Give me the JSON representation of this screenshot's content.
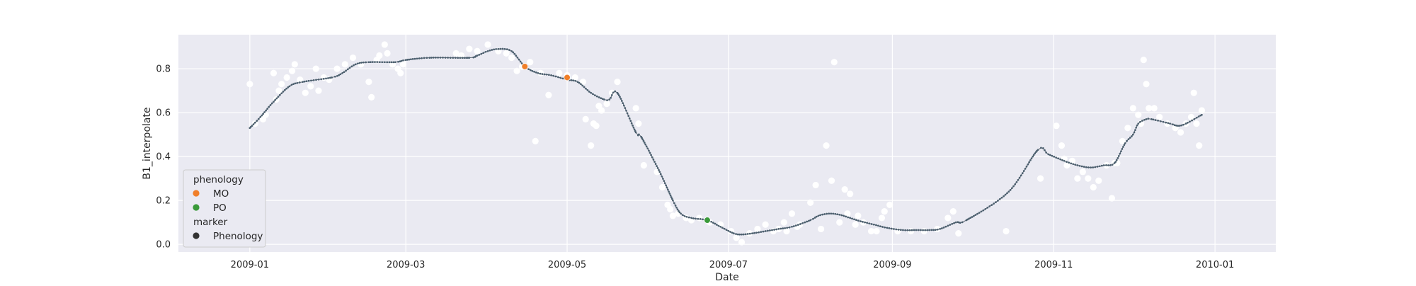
{
  "chart_data": {
    "type": "scatter",
    "xlabel": "Date",
    "ylabel": "B1_interpolate",
    "xlim": [
      "2008-12-05",
      "2010-01-24"
    ],
    "ylim": [
      -0.035,
      0.955
    ],
    "x_ticks": [
      "2009-01",
      "2009-03",
      "2009-05",
      "2009-07",
      "2009-09",
      "2009-11",
      "2010-01"
    ],
    "y_ticks": [
      "0.0",
      "0.2",
      "0.4",
      "0.6",
      "0.8"
    ],
    "grid": true,
    "legend_placement": "lower-left",
    "background": "#eaeaf2",
    "colors": {
      "observed_points": "#ffffff",
      "interpolated_line": "#4b5f6e",
      "MO": "#f07f2a",
      "PO": "#3a9a3a",
      "Phenology_marker": "#333333"
    },
    "legend": {
      "title_1": "phenology",
      "items_1": [
        {
          "label": "MO",
          "color": "#f07f2a"
        },
        {
          "label": "PO",
          "color": "#3a9a3a"
        }
      ],
      "title_2": "marker",
      "items_2": [
        {
          "label": "Phenology",
          "color": "#333333"
        }
      ]
    },
    "series": [
      {
        "role": "observed",
        "points": [
          [
            "2009-01-01",
            0.73
          ],
          [
            "2009-01-03",
            0.55
          ],
          [
            "2009-01-06",
            0.57
          ],
          [
            "2009-01-07",
            0.59
          ],
          [
            "2009-01-10",
            0.78
          ],
          [
            "2009-01-11",
            0.66
          ],
          [
            "2009-01-12",
            0.7
          ],
          [
            "2009-01-13",
            0.73
          ],
          [
            "2009-01-15",
            0.76
          ],
          [
            "2009-01-17",
            0.79
          ],
          [
            "2009-01-18",
            0.82
          ],
          [
            "2009-01-20",
            0.75
          ],
          [
            "2009-01-22",
            0.69
          ],
          [
            "2009-01-24",
            0.72
          ],
          [
            "2009-01-26",
            0.8
          ],
          [
            "2009-01-27",
            0.7
          ],
          [
            "2009-01-29",
            0.76
          ],
          [
            "2009-01-31",
            0.75
          ],
          [
            "2009-02-03",
            0.8
          ],
          [
            "2009-02-06",
            0.82
          ],
          [
            "2009-02-09",
            0.85
          ],
          [
            "2009-02-12",
            0.82
          ],
          [
            "2009-02-15",
            0.74
          ],
          [
            "2009-02-16",
            0.67
          ],
          [
            "2009-02-18",
            0.84
          ],
          [
            "2009-02-19",
            0.86
          ],
          [
            "2009-02-21",
            0.91
          ],
          [
            "2009-02-22",
            0.87
          ],
          [
            "2009-02-24",
            0.82
          ],
          [
            "2009-02-26",
            0.8
          ],
          [
            "2009-02-27",
            0.78
          ],
          [
            "2009-02-28",
            0.82
          ],
          [
            "2009-03-20",
            0.87
          ],
          [
            "2009-03-22",
            0.86
          ],
          [
            "2009-03-25",
            0.89
          ],
          [
            "2009-03-28",
            0.88
          ],
          [
            "2009-04-01",
            0.91
          ],
          [
            "2009-04-05",
            0.88
          ],
          [
            "2009-04-08",
            0.87
          ],
          [
            "2009-04-10",
            0.85
          ],
          [
            "2009-04-12",
            0.79
          ],
          [
            "2009-04-14",
            0.81
          ],
          [
            "2009-04-17",
            0.83
          ],
          [
            "2009-04-19",
            0.47
          ],
          [
            "2009-04-21",
            0.78
          ],
          [
            "2009-04-24",
            0.68
          ],
          [
            "2009-04-28",
            0.78
          ],
          [
            "2009-05-01",
            0.77
          ],
          [
            "2009-05-04",
            0.76
          ],
          [
            "2009-05-07",
            0.74
          ],
          [
            "2009-05-08",
            0.57
          ],
          [
            "2009-05-10",
            0.45
          ],
          [
            "2009-05-11",
            0.55
          ],
          [
            "2009-05-12",
            0.54
          ],
          [
            "2009-05-13",
            0.63
          ],
          [
            "2009-05-14",
            0.61
          ],
          [
            "2009-05-16",
            0.64
          ],
          [
            "2009-05-18",
            0.69
          ],
          [
            "2009-05-20",
            0.74
          ],
          [
            "2009-05-27",
            0.62
          ],
          [
            "2009-05-28",
            0.55
          ],
          [
            "2009-05-30",
            0.36
          ],
          [
            "2009-06-04",
            0.33
          ],
          [
            "2009-06-06",
            0.26
          ],
          [
            "2009-06-08",
            0.18
          ],
          [
            "2009-06-09",
            0.16
          ],
          [
            "2009-06-10",
            0.13
          ],
          [
            "2009-06-12",
            0.14
          ],
          [
            "2009-06-15",
            0.12
          ],
          [
            "2009-06-17",
            0.11
          ],
          [
            "2009-06-20",
            0.12
          ],
          [
            "2009-06-24",
            0.1
          ],
          [
            "2009-06-28",
            0.09
          ],
          [
            "2009-07-02",
            0.06
          ],
          [
            "2009-07-04",
            0.03
          ],
          [
            "2009-07-06",
            0.01
          ],
          [
            "2009-07-09",
            0.05
          ],
          [
            "2009-07-12",
            0.07
          ],
          [
            "2009-07-15",
            0.09
          ],
          [
            "2009-07-18",
            0.06
          ],
          [
            "2009-07-20",
            0.07
          ],
          [
            "2009-07-22",
            0.1
          ],
          [
            "2009-07-23",
            0.06
          ],
          [
            "2009-07-25",
            0.14
          ],
          [
            "2009-07-27",
            0.08
          ],
          [
            "2009-07-28",
            0.09
          ],
          [
            "2009-08-01",
            0.19
          ],
          [
            "2009-08-03",
            0.27
          ],
          [
            "2009-08-05",
            0.07
          ],
          [
            "2009-08-07",
            0.45
          ],
          [
            "2009-08-09",
            0.29
          ],
          [
            "2009-08-10",
            0.83
          ],
          [
            "2009-08-12",
            0.1
          ],
          [
            "2009-08-14",
            0.25
          ],
          [
            "2009-08-15",
            0.14
          ],
          [
            "2009-08-16",
            0.23
          ],
          [
            "2009-08-18",
            0.09
          ],
          [
            "2009-08-19",
            0.13
          ],
          [
            "2009-08-21",
            0.1
          ],
          [
            "2009-08-24",
            0.06
          ],
          [
            "2009-08-26",
            0.06
          ],
          [
            "2009-08-28",
            0.12
          ],
          [
            "2009-08-29",
            0.15
          ],
          [
            "2009-08-31",
            0.18
          ],
          [
            "2009-09-03",
            0.06
          ],
          [
            "2009-09-08",
            0.06
          ],
          [
            "2009-09-13",
            0.06
          ],
          [
            "2009-09-18",
            0.07
          ],
          [
            "2009-09-22",
            0.12
          ],
          [
            "2009-09-24",
            0.15
          ],
          [
            "2009-09-26",
            0.05
          ],
          [
            "2009-10-14",
            0.06
          ],
          [
            "2009-10-27",
            0.3
          ],
          [
            "2009-11-02",
            0.54
          ],
          [
            "2009-11-04",
            0.45
          ],
          [
            "2009-11-05",
            0.39
          ],
          [
            "2009-11-06",
            0.36
          ],
          [
            "2009-11-08",
            0.38
          ],
          [
            "2009-11-10",
            0.3
          ],
          [
            "2009-11-12",
            0.33
          ],
          [
            "2009-11-14",
            0.3
          ],
          [
            "2009-11-16",
            0.26
          ],
          [
            "2009-11-18",
            0.29
          ],
          [
            "2009-11-21",
            0.36
          ],
          [
            "2009-11-23",
            0.21
          ],
          [
            "2009-11-24",
            0.37
          ],
          [
            "2009-11-25",
            0.37
          ],
          [
            "2009-11-27",
            0.47
          ],
          [
            "2009-11-29",
            0.53
          ],
          [
            "2009-12-01",
            0.62
          ],
          [
            "2009-12-03",
            0.59
          ],
          [
            "2009-12-04",
            0.55
          ],
          [
            "2009-12-05",
            0.84
          ],
          [
            "2009-12-06",
            0.73
          ],
          [
            "2009-12-07",
            0.62
          ],
          [
            "2009-12-09",
            0.62
          ],
          [
            "2009-12-11",
            0.58
          ],
          [
            "2009-12-14",
            0.55
          ],
          [
            "2009-12-17",
            0.53
          ],
          [
            "2009-12-19",
            0.51
          ],
          [
            "2009-12-21",
            0.55
          ],
          [
            "2009-12-23",
            0.58
          ],
          [
            "2009-12-24",
            0.69
          ],
          [
            "2009-12-25",
            0.55
          ],
          [
            "2009-12-26",
            0.45
          ],
          [
            "2009-12-27",
            0.61
          ]
        ]
      },
      {
        "role": "interpolated",
        "points": [
          [
            "2009-01-01",
            0.53
          ],
          [
            "2009-01-05",
            0.58
          ],
          [
            "2009-01-10",
            0.65
          ],
          [
            "2009-01-16",
            0.72
          ],
          [
            "2009-01-21",
            0.74
          ],
          [
            "2009-02-01",
            0.76
          ],
          [
            "2009-02-05",
            0.78
          ],
          [
            "2009-02-10",
            0.82
          ],
          [
            "2009-02-15",
            0.83
          ],
          [
            "2009-02-25",
            0.83
          ],
          [
            "2009-03-01",
            0.84
          ],
          [
            "2009-03-10",
            0.85
          ],
          [
            "2009-03-25",
            0.85
          ],
          [
            "2009-03-28",
            0.86
          ],
          [
            "2009-04-01",
            0.88
          ],
          [
            "2009-04-05",
            0.89
          ],
          [
            "2009-04-10",
            0.88
          ],
          [
            "2009-04-15",
            0.81
          ],
          [
            "2009-04-20",
            0.78
          ],
          [
            "2009-04-25",
            0.77
          ],
          [
            "2009-05-01",
            0.75
          ],
          [
            "2009-05-05",
            0.74
          ],
          [
            "2009-05-10",
            0.69
          ],
          [
            "2009-05-15",
            0.66
          ],
          [
            "2009-05-17",
            0.66
          ],
          [
            "2009-05-20",
            0.69
          ],
          [
            "2009-05-27",
            0.51
          ],
          [
            "2009-05-29",
            0.49
          ],
          [
            "2009-06-05",
            0.33
          ],
          [
            "2009-06-10",
            0.2
          ],
          [
            "2009-06-13",
            0.14
          ],
          [
            "2009-06-17",
            0.12
          ],
          [
            "2009-06-23",
            0.11
          ],
          [
            "2009-06-28",
            0.08
          ],
          [
            "2009-07-03",
            0.05
          ],
          [
            "2009-07-06",
            0.045
          ],
          [
            "2009-07-10",
            0.05
          ],
          [
            "2009-07-15",
            0.06
          ],
          [
            "2009-07-20",
            0.07
          ],
          [
            "2009-07-25",
            0.08
          ],
          [
            "2009-08-01",
            0.11
          ],
          [
            "2009-08-04",
            0.13
          ],
          [
            "2009-08-08",
            0.14
          ],
          [
            "2009-08-12",
            0.135
          ],
          [
            "2009-08-16",
            0.12
          ],
          [
            "2009-08-20",
            0.105
          ],
          [
            "2009-08-25",
            0.09
          ],
          [
            "2009-08-30",
            0.075
          ],
          [
            "2009-09-05",
            0.065
          ],
          [
            "2009-09-10",
            0.065
          ],
          [
            "2009-09-15",
            0.065
          ],
          [
            "2009-09-19",
            0.07
          ],
          [
            "2009-09-25",
            0.1
          ],
          [
            "2009-09-29",
            0.11
          ],
          [
            "2009-10-15",
            0.24
          ],
          [
            "2009-10-26",
            0.43
          ],
          [
            "2009-10-30",
            0.41
          ],
          [
            "2009-11-05",
            0.38
          ],
          [
            "2009-11-10",
            0.36
          ],
          [
            "2009-11-15",
            0.35
          ],
          [
            "2009-11-20",
            0.36
          ],
          [
            "2009-11-24",
            0.37
          ],
          [
            "2009-11-28",
            0.46
          ],
          [
            "2009-12-01",
            0.5
          ],
          [
            "2009-12-03",
            0.55
          ],
          [
            "2009-12-06",
            0.57
          ],
          [
            "2009-12-08",
            0.57
          ],
          [
            "2009-12-15",
            0.55
          ],
          [
            "2009-12-18",
            0.54
          ],
          [
            "2009-12-21",
            0.55
          ],
          [
            "2009-12-27",
            0.59
          ]
        ]
      },
      {
        "name": "MO",
        "role": "phenology",
        "points": [
          [
            "2009-04-15",
            0.81
          ],
          [
            "2009-05-01",
            0.76
          ]
        ]
      },
      {
        "name": "PO",
        "role": "phenology",
        "points": [
          [
            "2009-06-23",
            0.11
          ]
        ]
      }
    ]
  }
}
